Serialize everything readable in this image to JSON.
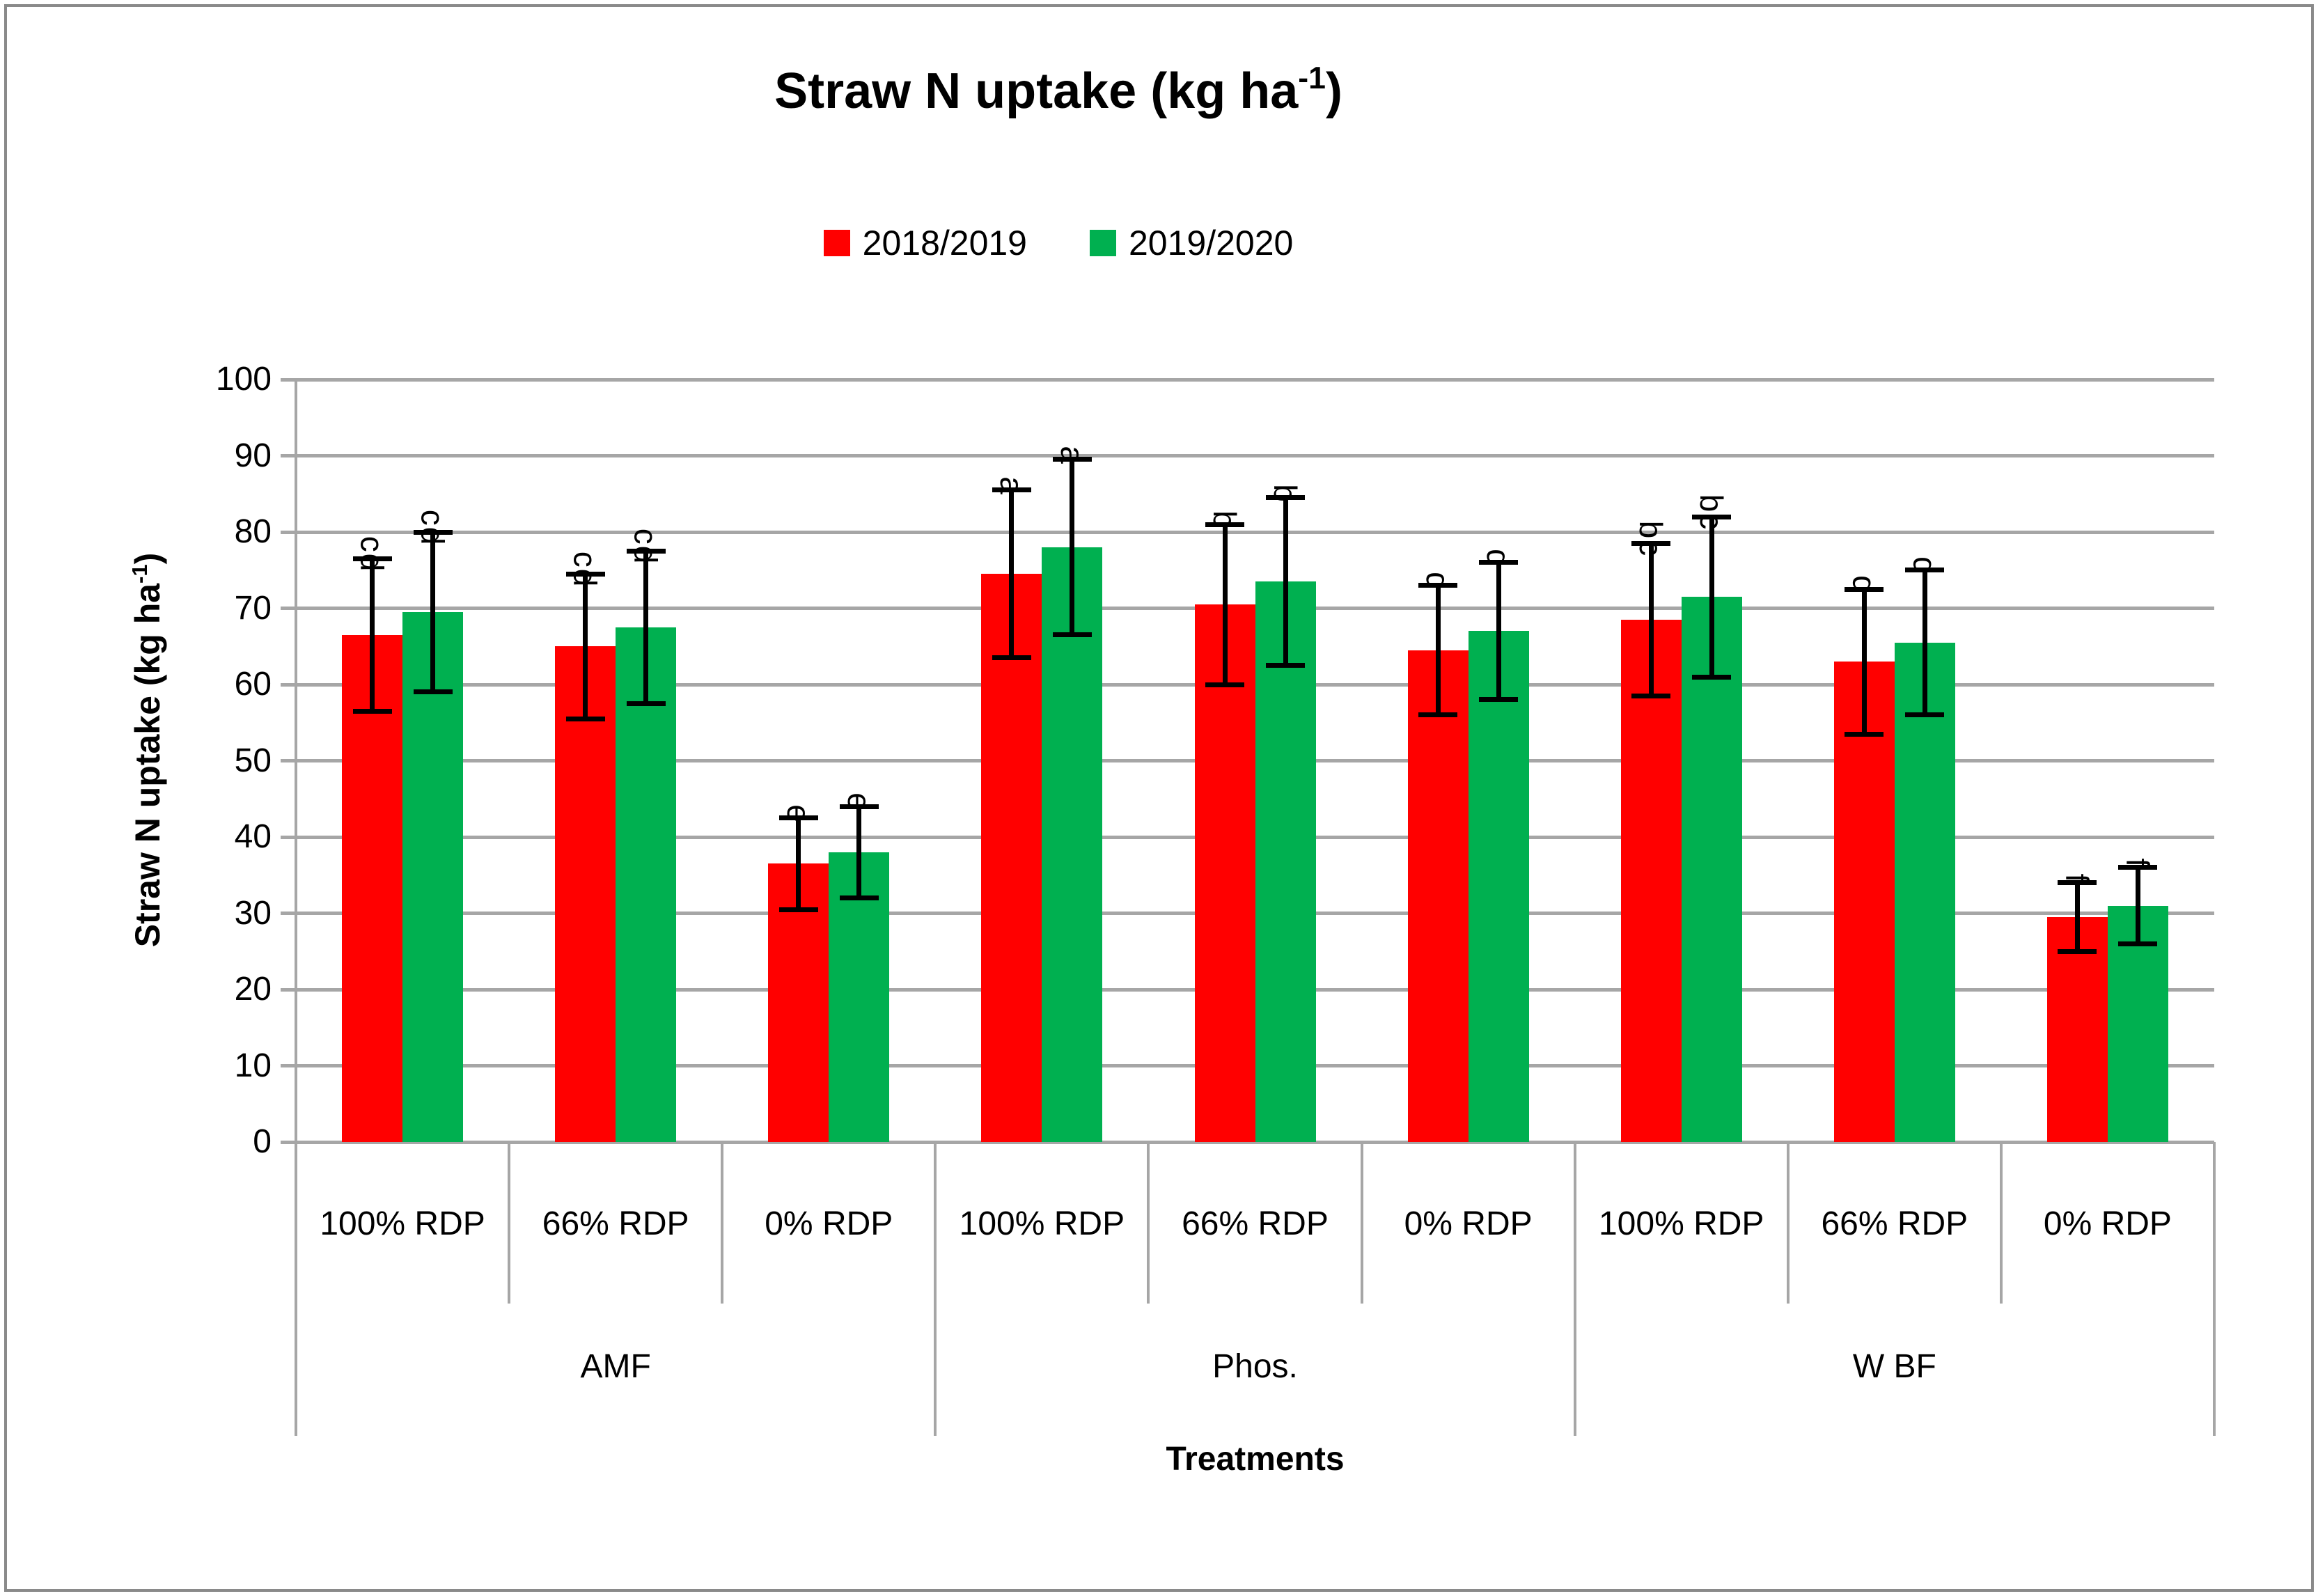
{
  "title": {
    "base": "Straw N uptake (kg ha",
    "sup": "-1",
    "end": ")"
  },
  "legend": [
    {
      "label": "2018/2019",
      "color": "#FF0000"
    },
    {
      "label": "2019/2020",
      "color": "#00B050"
    }
  ],
  "y_axis": {
    "title_base": "Straw N uptake (kg ha",
    "title_sup": "-1",
    "title_end": ")",
    "tick_labels": [
      "0",
      "10",
      "20",
      "30",
      "40",
      "50",
      "60",
      "70",
      "80",
      "90",
      "100"
    ],
    "min": 0,
    "max": 100,
    "step": 10
  },
  "x_axis": {
    "title": "Treatments"
  },
  "colors": {
    "gridline": "#a6a6a6",
    "bar_red": "#FF0000",
    "bar_green": "#00B050",
    "annotation": "#000000"
  },
  "chart_data": {
    "type": "bar",
    "title": "Straw N uptake (kg ha-1)",
    "ylabel": "Straw N uptake (kg ha-1)",
    "xlabel": "Treatments",
    "ylim": [
      0,
      100
    ],
    "ytick_step": 10,
    "grid": true,
    "legend_position": "top-center",
    "error_bars": "plus-minus-sd",
    "groups": [
      "AMF",
      "Phos.",
      "W BF"
    ],
    "categories": [
      "100% RDP",
      "66% RDP",
      "0% RDP",
      "100% RDP",
      "66% RDP",
      "0% RDP",
      "100% RDP",
      "66% RDP",
      "0% RDP"
    ],
    "category_groups": [
      "AMF",
      "AMF",
      "AMF",
      "Phos.",
      "Phos.",
      "Phos.",
      "W BF",
      "W BF",
      "W BF"
    ],
    "series": [
      {
        "name": "2018/2019",
        "color": "#FF0000",
        "values": [
          66.5,
          65.0,
          36.5,
          74.5,
          70.5,
          64.5,
          68.5,
          63.0,
          29.5
        ],
        "errors": [
          10.0,
          9.5,
          6.0,
          11.0,
          10.5,
          8.5,
          10.0,
          9.5,
          4.5
        ],
        "sig_letters": [
          "cd",
          "cd",
          "e",
          "a",
          "b",
          "d",
          "bc",
          "d",
          "f"
        ]
      },
      {
        "name": "2019/2020",
        "color": "#00B050",
        "values": [
          69.5,
          67.5,
          38.0,
          78.0,
          73.5,
          67.0,
          71.5,
          65.5,
          31.0
        ],
        "errors": [
          10.5,
          10.0,
          6.0,
          11.5,
          11.0,
          9.0,
          10.5,
          9.5,
          5.0
        ],
        "sig_letters": [
          "cd",
          "cd",
          "e",
          "a",
          "b",
          "d",
          "bc",
          "d",
          "f"
        ]
      }
    ]
  }
}
